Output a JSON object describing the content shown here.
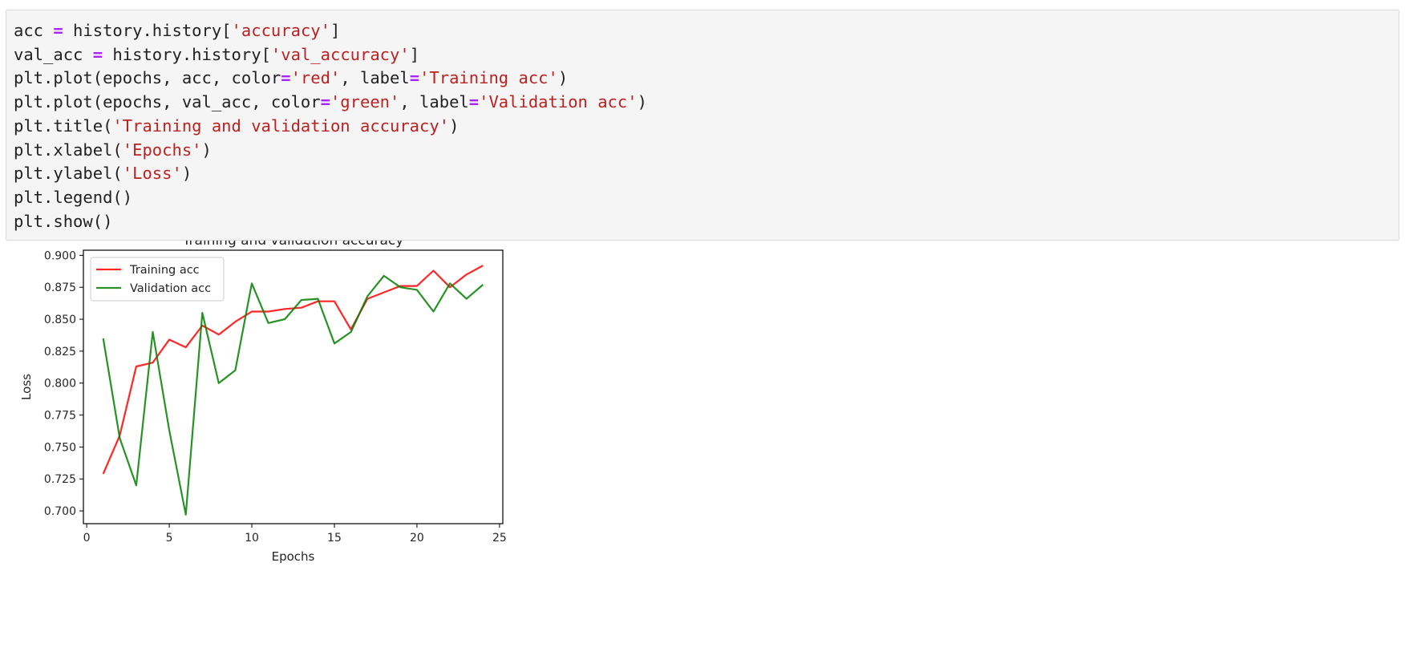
{
  "code": {
    "lines": [
      [
        {
          "t": "acc "
        },
        {
          "t": "=",
          "c": "op"
        },
        {
          "t": " history.history["
        },
        {
          "t": "'accuracy'",
          "c": "str"
        },
        {
          "t": "]"
        }
      ],
      [
        {
          "t": "val_acc "
        },
        {
          "t": "=",
          "c": "op"
        },
        {
          "t": " history.history["
        },
        {
          "t": "'val_accuracy'",
          "c": "str"
        },
        {
          "t": "]"
        }
      ],
      [
        {
          "t": "plt.plot(epochs, acc, color"
        },
        {
          "t": "=",
          "c": "op"
        },
        {
          "t": "'red'",
          "c": "str"
        },
        {
          "t": ", label"
        },
        {
          "t": "=",
          "c": "op"
        },
        {
          "t": "'Training acc'",
          "c": "str"
        },
        {
          "t": ")"
        }
      ],
      [
        {
          "t": "plt.plot(epochs, val_acc, color"
        },
        {
          "t": "=",
          "c": "op"
        },
        {
          "t": "'green'",
          "c": "str"
        },
        {
          "t": ", label"
        },
        {
          "t": "=",
          "c": "op"
        },
        {
          "t": "'Validation acc'",
          "c": "str"
        },
        {
          "t": ")"
        }
      ],
      [
        {
          "t": "plt.title("
        },
        {
          "t": "'Training and validation accuracy'",
          "c": "str"
        },
        {
          "t": ")"
        }
      ],
      [
        {
          "t": "plt.xlabel("
        },
        {
          "t": "'Epochs'",
          "c": "str"
        },
        {
          "t": ")"
        }
      ],
      [
        {
          "t": "plt.ylabel("
        },
        {
          "t": "'Loss'",
          "c": "str"
        },
        {
          "t": ")"
        }
      ],
      [
        {
          "t": "plt.legend()"
        }
      ],
      [
        {
          "t": "plt.show()"
        }
      ]
    ]
  },
  "chart_data": {
    "type": "line",
    "title": "Training and validation accuracy",
    "xlabel": "Epochs",
    "ylabel": "Loss",
    "xlim": [
      -0.2,
      25.2
    ],
    "ylim": [
      0.69,
      0.904
    ],
    "xticks": [
      0,
      5,
      10,
      15,
      20,
      25
    ],
    "xtick_labels": [
      "0",
      "5",
      "10",
      "15",
      "20",
      "25"
    ],
    "yticks": [
      0.7,
      0.725,
      0.75,
      0.775,
      0.8,
      0.825,
      0.85,
      0.875,
      0.9
    ],
    "ytick_labels": [
      "0.700",
      "0.725",
      "0.750",
      "0.775",
      "0.800",
      "0.825",
      "0.850",
      "0.875",
      "0.900"
    ],
    "grid": false,
    "legend": "upper left",
    "x": [
      1,
      2,
      3,
      4,
      5,
      6,
      7,
      8,
      9,
      10,
      11,
      12,
      13,
      14,
      15,
      16,
      17,
      18,
      19,
      20,
      21,
      22,
      23,
      24
    ],
    "series": [
      {
        "name": "Training acc",
        "color": "#ff0000",
        "values": [
          0.729,
          0.759,
          0.813,
          0.816,
          0.834,
          0.828,
          0.845,
          0.838,
          0.848,
          0.856,
          0.856,
          0.858,
          0.859,
          0.864,
          0.864,
          0.842,
          0.866,
          0.871,
          0.876,
          0.876,
          0.888,
          0.875,
          0.885,
          0.892
        ]
      },
      {
        "name": "Validation acc",
        "color": "#008000",
        "values": [
          0.835,
          0.757,
          0.72,
          0.84,
          0.763,
          0.697,
          0.855,
          0.8,
          0.81,
          0.878,
          0.847,
          0.85,
          0.865,
          0.866,
          0.831,
          0.84,
          0.868,
          0.884,
          0.875,
          0.873,
          0.856,
          0.878,
          0.866,
          0.877
        ]
      }
    ]
  }
}
